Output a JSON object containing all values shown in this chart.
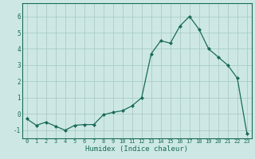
{
  "x": [
    0,
    1,
    2,
    3,
    4,
    5,
    6,
    7,
    8,
    9,
    10,
    11,
    12,
    13,
    14,
    15,
    16,
    17,
    18,
    19,
    20,
    21,
    22,
    23
  ],
  "y": [
    -0.3,
    -0.7,
    -0.5,
    -0.75,
    -1.0,
    -0.7,
    -0.65,
    -0.65,
    -0.05,
    0.1,
    0.2,
    0.5,
    1.0,
    3.7,
    4.5,
    4.35,
    5.4,
    6.0,
    5.2,
    4.0,
    3.5,
    3.0,
    2.2,
    -1.2
  ],
  "line_color": "#1a6b5a",
  "marker": "D",
  "markersize": 2.0,
  "linewidth": 0.9,
  "bg_color": "#cde8e4",
  "grid_color": "#aaccc8",
  "xlabel": "Humidex (Indice chaleur)",
  "yticks": [
    -1,
    0,
    1,
    2,
    3,
    4,
    5,
    6
  ],
  "xticks": [
    0,
    1,
    2,
    3,
    4,
    5,
    6,
    7,
    8,
    9,
    10,
    11,
    12,
    13,
    14,
    15,
    16,
    17,
    18,
    19,
    20,
    21,
    22,
    23
  ],
  "xlim": [
    -0.5,
    23.5
  ],
  "ylim": [
    -1.5,
    6.8
  ],
  "tick_color": "#1a6b5a",
  "label_color": "#1a6b5a",
  "spine_color": "#1a6b5a",
  "tick_fontsize": 5.0,
  "label_fontsize": 6.5
}
